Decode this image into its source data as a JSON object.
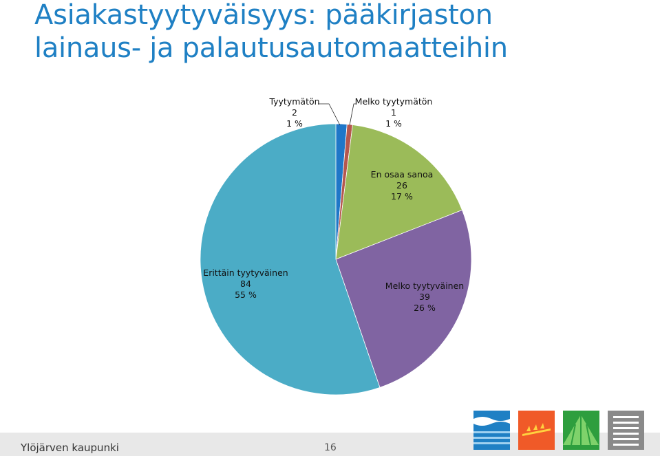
{
  "title": {
    "line1": "Asiakastyytyväisyys: pääkirjaston",
    "line2": "lainaus- ja palautusautomaatteihin"
  },
  "footer": {
    "organization": "Ylöjärven kaupunki",
    "page_number": "16"
  },
  "logos": [
    "water-logo-icon",
    "grain-logo-icon",
    "field-logo-icon",
    "building-logo-icon"
  ],
  "chart_data": {
    "type": "pie",
    "slices": [
      {
        "label": "Tyytymätön",
        "count": "2",
        "percent": "1 %",
        "value": 2,
        "color": "#1f77c8"
      },
      {
        "label": "Melko tyytymätön",
        "count": "1",
        "percent": "1 %",
        "value": 1,
        "color": "#b5574e"
      },
      {
        "label": "En osaa sanoa",
        "count": "26",
        "percent": "17 %",
        "value": 26,
        "color": "#9bbb59"
      },
      {
        "label": "Melko tyytyväinen",
        "count": "39",
        "percent": "26 %",
        "value": 39,
        "color": "#8064a2"
      },
      {
        "label": "Erittäin tyytyväinen",
        "count": "84",
        "percent": "55 %",
        "value": 84,
        "color": "#4bacc6"
      }
    ]
  }
}
